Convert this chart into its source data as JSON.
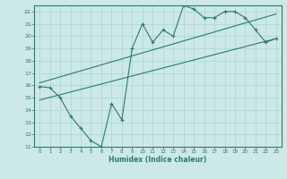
{
  "title": "",
  "xlabel": "Humidex (Indice chaleur)",
  "bg_color": "#cce8e8",
  "line_color": "#2d7a6e",
  "grid_color": "#aad4d4",
  "xlim": [
    -0.5,
    23.5
  ],
  "ylim": [
    11,
    22.5
  ],
  "yticks": [
    11,
    12,
    13,
    14,
    15,
    16,
    17,
    18,
    19,
    20,
    21,
    22
  ],
  "xticks": [
    0,
    1,
    2,
    3,
    4,
    5,
    6,
    7,
    8,
    9,
    10,
    11,
    12,
    13,
    14,
    15,
    16,
    17,
    18,
    19,
    20,
    21,
    22,
    23
  ],
  "main_x": [
    0,
    1,
    2,
    3,
    4,
    5,
    6,
    7,
    8,
    9,
    10,
    11,
    12,
    13,
    14,
    15,
    16,
    17,
    18,
    19,
    20,
    21,
    22,
    23
  ],
  "main_y": [
    15.9,
    15.8,
    15.0,
    13.5,
    12.5,
    11.5,
    11.0,
    14.5,
    13.2,
    19.0,
    21.0,
    19.5,
    20.5,
    20.0,
    22.5,
    22.2,
    21.5,
    21.5,
    22.0,
    22.0,
    21.5,
    20.5,
    19.5,
    19.8
  ],
  "line1_x": [
    0,
    23
  ],
  "line1_y": [
    16.2,
    21.8
  ],
  "line2_x": [
    0,
    23
  ],
  "line2_y": [
    14.8,
    19.8
  ]
}
